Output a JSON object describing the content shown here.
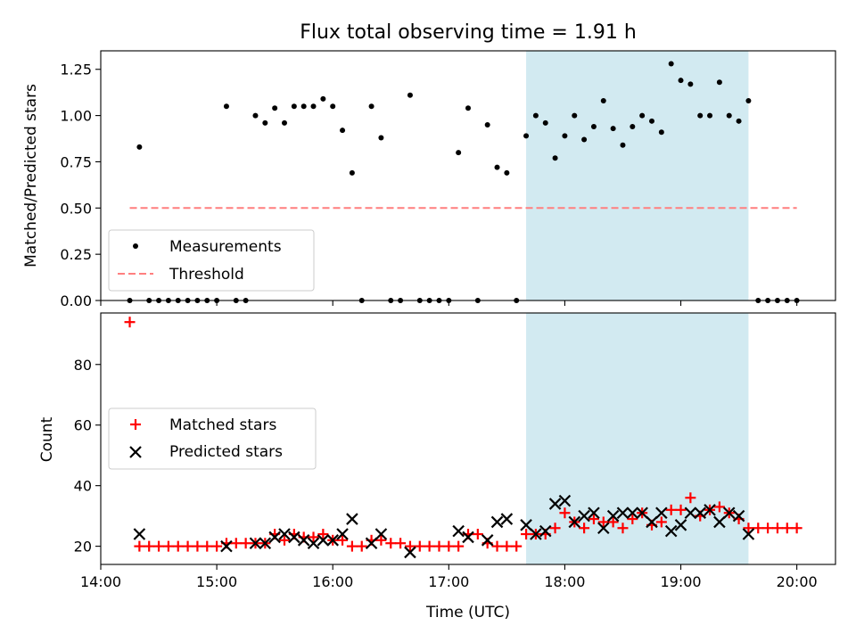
{
  "chart_data": [
    {
      "type": "scatter",
      "title": "Flux total observing time = 1.91 h",
      "xlabel": "",
      "ylabel": "Matched/Predicted stars",
      "xlim": [
        "14:00",
        "20:20"
      ],
      "ylim": [
        0,
        1.35
      ],
      "yticks": [
        0.0,
        0.25,
        0.5,
        0.75,
        1.0,
        1.25
      ],
      "ytick_labels": [
        "0.00",
        "0.25",
        "0.50",
        "0.75",
        "1.00",
        "1.25"
      ],
      "legend_position": "lower-left",
      "shaded_region": {
        "start": "17:40",
        "end": "19:35",
        "color": "#add8e6"
      },
      "series": [
        {
          "name": "Measurements",
          "kind": "dot",
          "color": "#000000",
          "points": [
            [
              "14:15",
              0.0
            ],
            [
              "14:20",
              0.83
            ],
            [
              "14:25",
              0.0
            ],
            [
              "14:30",
              0.0
            ],
            [
              "14:35",
              0.0
            ],
            [
              "14:40",
              0.0
            ],
            [
              "14:45",
              0.0
            ],
            [
              "14:50",
              0.0
            ],
            [
              "14:55",
              0.0
            ],
            [
              "15:00",
              0.0
            ],
            [
              "15:05",
              1.05
            ],
            [
              "15:10",
              0.0
            ],
            [
              "15:15",
              0.0
            ],
            [
              "15:20",
              1.0
            ],
            [
              "15:25",
              0.96
            ],
            [
              "15:30",
              1.04
            ],
            [
              "15:35",
              0.96
            ],
            [
              "15:40",
              1.05
            ],
            [
              "15:45",
              1.05
            ],
            [
              "15:50",
              1.05
            ],
            [
              "15:55",
              1.09
            ],
            [
              "16:00",
              1.05
            ],
            [
              "16:05",
              0.92
            ],
            [
              "16:10",
              0.69
            ],
            [
              "16:15",
              0.0
            ],
            [
              "16:20",
              1.05
            ],
            [
              "16:25",
              0.88
            ],
            [
              "16:30",
              0.0
            ],
            [
              "16:35",
              0.0
            ],
            [
              "16:40",
              1.11
            ],
            [
              "16:45",
              0.0
            ],
            [
              "16:50",
              0.0
            ],
            [
              "16:55",
              0.0
            ],
            [
              "17:00",
              0.0
            ],
            [
              "17:05",
              0.8
            ],
            [
              "17:10",
              1.04
            ],
            [
              "17:15",
              0.0
            ],
            [
              "17:20",
              0.95
            ],
            [
              "17:25",
              0.72
            ],
            [
              "17:30",
              0.69
            ],
            [
              "17:35",
              0.0
            ],
            [
              "17:40",
              0.89
            ],
            [
              "17:45",
              1.0
            ],
            [
              "17:50",
              0.96
            ],
            [
              "17:55",
              0.77
            ],
            [
              "18:00",
              0.89
            ],
            [
              "18:05",
              1.0
            ],
            [
              "18:10",
              0.87
            ],
            [
              "18:15",
              0.94
            ],
            [
              "18:20",
              1.08
            ],
            [
              "18:25",
              0.93
            ],
            [
              "18:30",
              0.84
            ],
            [
              "18:35",
              0.94
            ],
            [
              "18:40",
              1.0
            ],
            [
              "18:45",
              0.97
            ],
            [
              "18:50",
              0.91
            ],
            [
              "18:55",
              1.28
            ],
            [
              "19:00",
              1.19
            ],
            [
              "19:05",
              1.17
            ],
            [
              "19:10",
              1.0
            ],
            [
              "19:15",
              1.0
            ],
            [
              "19:20",
              1.18
            ],
            [
              "19:25",
              1.0
            ],
            [
              "19:30",
              0.97
            ],
            [
              "19:35",
              1.08
            ],
            [
              "19:40",
              0.0
            ],
            [
              "19:45",
              0.0
            ],
            [
              "19:50",
              0.0
            ],
            [
              "19:55",
              0.0
            ],
            [
              "20:00",
              0.0
            ]
          ]
        },
        {
          "name": "Threshold",
          "kind": "dashed-line",
          "color": "#ff7f7f",
          "points": [
            [
              "14:15",
              0.5
            ],
            [
              "20:00",
              0.5
            ]
          ]
        }
      ]
    },
    {
      "type": "scatter",
      "title": "",
      "xlabel": "Time (UTC)",
      "ylabel": "Count",
      "xlim": [
        "14:00",
        "20:20"
      ],
      "ylim": [
        14,
        97
      ],
      "yticks": [
        20,
        40,
        60,
        80
      ],
      "ytick_labels": [
        "20",
        "40",
        "60",
        "80"
      ],
      "xticks": [
        "14:00",
        "15:00",
        "16:00",
        "17:00",
        "18:00",
        "19:00",
        "20:00"
      ],
      "xtick_labels": [
        "14:00",
        "15:00",
        "16:00",
        "17:00",
        "18:00",
        "19:00",
        "20:00"
      ],
      "legend_position": "center-left",
      "shaded_region": {
        "start": "17:40",
        "end": "19:35",
        "color": "#add8e6"
      },
      "series": [
        {
          "name": "Matched stars",
          "kind": "plus",
          "color": "#ff0000",
          "points": [
            [
              "14:15",
              94
            ],
            [
              "14:20",
              20
            ],
            [
              "14:25",
              20
            ],
            [
              "14:30",
              20
            ],
            [
              "14:35",
              20
            ],
            [
              "14:40",
              20
            ],
            [
              "14:45",
              20
            ],
            [
              "14:50",
              20
            ],
            [
              "14:55",
              20
            ],
            [
              "15:00",
              20
            ],
            [
              "15:05",
              21
            ],
            [
              "15:10",
              21
            ],
            [
              "15:15",
              21
            ],
            [
              "15:20",
              21
            ],
            [
              "15:25",
              21
            ],
            [
              "15:30",
              24
            ],
            [
              "15:35",
              22
            ],
            [
              "15:40",
              24
            ],
            [
              "15:45",
              23
            ],
            [
              "15:50",
              23
            ],
            [
              "15:55",
              24
            ],
            [
              "16:00",
              22
            ],
            [
              "16:05",
              22
            ],
            [
              "16:10",
              20
            ],
            [
              "16:15",
              20
            ],
            [
              "16:20",
              22
            ],
            [
              "16:25",
              22
            ],
            [
              "16:30",
              21
            ],
            [
              "16:35",
              21
            ],
            [
              "16:40",
              20
            ],
            [
              "16:45",
              20
            ],
            [
              "16:50",
              20
            ],
            [
              "16:55",
              20
            ],
            [
              "17:00",
              20
            ],
            [
              "17:05",
              20
            ],
            [
              "17:10",
              24
            ],
            [
              "17:15",
              24
            ],
            [
              "17:20",
              21
            ],
            [
              "17:25",
              20
            ],
            [
              "17:30",
              20
            ],
            [
              "17:35",
              20
            ],
            [
              "17:40",
              24
            ],
            [
              "17:45",
              24
            ],
            [
              "17:50",
              24
            ],
            [
              "17:55",
              26
            ],
            [
              "18:00",
              31
            ],
            [
              "18:05",
              28
            ],
            [
              "18:10",
              26
            ],
            [
              "18:15",
              29
            ],
            [
              "18:20",
              28
            ],
            [
              "18:25",
              28
            ],
            [
              "18:30",
              26
            ],
            [
              "18:35",
              29
            ],
            [
              "18:40",
              31
            ],
            [
              "18:45",
              27
            ],
            [
              "18:50",
              28
            ],
            [
              "18:55",
              32
            ],
            [
              "19:00",
              32
            ],
            [
              "19:05",
              36
            ],
            [
              "19:10",
              30
            ],
            [
              "19:15",
              32
            ],
            [
              "19:20",
              33
            ],
            [
              "19:25",
              31
            ],
            [
              "19:30",
              29
            ],
            [
              "19:35",
              26
            ],
            [
              "19:40",
              26
            ],
            [
              "19:45",
              26
            ],
            [
              "19:50",
              26
            ],
            [
              "19:55",
              26
            ],
            [
              "20:00",
              26
            ]
          ]
        },
        {
          "name": "Predicted stars",
          "kind": "cross",
          "color": "#000000",
          "points": [
            [
              "14:20",
              24
            ],
            [
              "15:05",
              20
            ],
            [
              "15:20",
              21
            ],
            [
              "15:25",
              21
            ],
            [
              "15:30",
              23
            ],
            [
              "15:35",
              24
            ],
            [
              "15:40",
              23
            ],
            [
              "15:45",
              22
            ],
            [
              "15:50",
              21
            ],
            [
              "15:55",
              22
            ],
            [
              "16:00",
              22
            ],
            [
              "16:05",
              24
            ],
            [
              "16:10",
              29
            ],
            [
              "16:20",
              21
            ],
            [
              "16:25",
              24
            ],
            [
              "16:40",
              18
            ],
            [
              "17:05",
              25
            ],
            [
              "17:10",
              23
            ],
            [
              "17:20",
              22
            ],
            [
              "17:25",
              28
            ],
            [
              "17:30",
              29
            ],
            [
              "17:40",
              27
            ],
            [
              "17:45",
              24
            ],
            [
              "17:50",
              25
            ],
            [
              "17:55",
              34
            ],
            [
              "18:00",
              35
            ],
            [
              "18:05",
              28
            ],
            [
              "18:10",
              30
            ],
            [
              "18:15",
              31
            ],
            [
              "18:20",
              26
            ],
            [
              "18:25",
              30
            ],
            [
              "18:30",
              31
            ],
            [
              "18:35",
              31
            ],
            [
              "18:40",
              31
            ],
            [
              "18:45",
              28
            ],
            [
              "18:50",
              31
            ],
            [
              "18:55",
              25
            ],
            [
              "19:00",
              27
            ],
            [
              "19:05",
              31
            ],
            [
              "19:10",
              31
            ],
            [
              "19:15",
              32
            ],
            [
              "19:20",
              28
            ],
            [
              "19:25",
              31
            ],
            [
              "19:30",
              30
            ],
            [
              "19:35",
              24
            ]
          ]
        }
      ]
    }
  ]
}
